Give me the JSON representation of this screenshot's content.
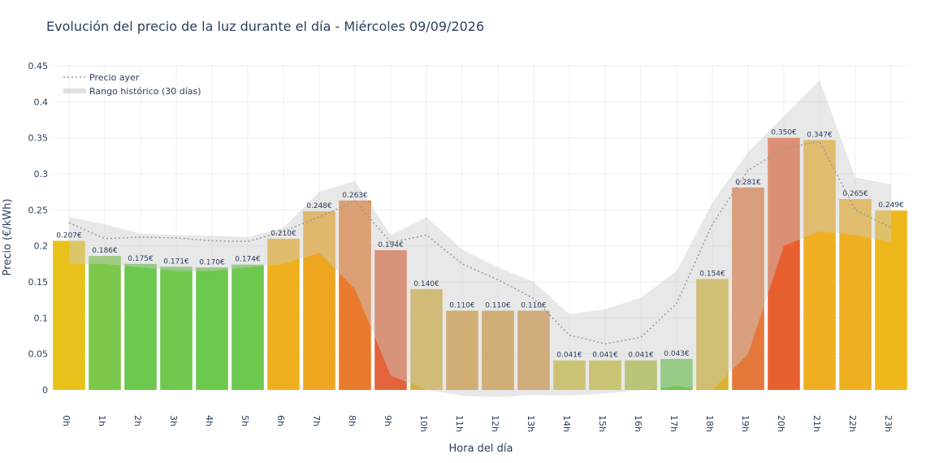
{
  "chart_data": {
    "type": "bar",
    "title": "Evolución del precio de la luz durante el día - Miércoles 09/09/2026",
    "xlabel": "Hora del día",
    "ylabel": "Precio (€/kWh)",
    "ylim": [
      0,
      0.45
    ],
    "yticks": [
      0,
      0.05,
      0.1,
      0.15,
      0.2,
      0.25,
      0.3,
      0.35,
      0.4,
      0.45
    ],
    "ytick_labels": [
      "0",
      "0.05",
      "0.1",
      "0.15",
      "0.2",
      "0.25",
      "0.3",
      "0.35",
      "0.4",
      "0.45"
    ],
    "categories": [
      "0h",
      "1h",
      "2h",
      "3h",
      "4h",
      "5h",
      "6h",
      "7h",
      "8h",
      "9h",
      "10h",
      "11h",
      "12h",
      "13h",
      "14h",
      "15h",
      "16h",
      "17h",
      "18h",
      "19h",
      "20h",
      "21h",
      "22h",
      "23h"
    ],
    "values": [
      0.207,
      0.186,
      0.175,
      0.171,
      0.17,
      0.174,
      0.21,
      0.248,
      0.263,
      0.194,
      0.14,
      0.11,
      0.11,
      0.11,
      0.041,
      0.041,
      0.041,
      0.043,
      0.154,
      0.281,
      0.35,
      0.347,
      0.265,
      0.249
    ],
    "value_labels": [
      "0.207€",
      "0.186€",
      "0.175€",
      "0.171€",
      "0.170€",
      "0.174€",
      "0.210€",
      "0.248€",
      "0.263€",
      "0.194€",
      "0.140€",
      "0.110€",
      "0.110€",
      "0.110€",
      "0.041€",
      "0.041€",
      "0.041€",
      "0.043€",
      "0.154€",
      "0.281€",
      "0.350€",
      "0.347€",
      "0.265€",
      "0.249€"
    ],
    "bar_colors": [
      "#e8c21a",
      "#7cc84a",
      "#6cc84e",
      "#70c84e",
      "#6cc84e",
      "#6cc84e",
      "#eeb01e",
      "#eea620",
      "#ea7a2c",
      "#e2643a",
      "#d4b034",
      "#d49630",
      "#d49630",
      "#d4903a",
      "#cabc2c",
      "#cabc2c",
      "#aebe34",
      "#6cc84e",
      "#d8b430",
      "#e4783a",
      "#e86030",
      "#eeb022",
      "#eeb022",
      "#eeb81c"
    ],
    "series": [
      {
        "name": "Precio ayer",
        "style": "dotted-line",
        "color": "#999999",
        "values": [
          0.232,
          0.21,
          0.212,
          0.211,
          0.207,
          0.206,
          0.22,
          0.24,
          0.262,
          0.205,
          0.215,
          0.175,
          0.153,
          0.127,
          0.076,
          0.064,
          0.073,
          0.12,
          0.23,
          0.305,
          0.335,
          0.345,
          0.25,
          0.225
        ]
      },
      {
        "name": "Rango histórico (30 días)",
        "style": "band",
        "color": "#cccccc",
        "upper": [
          0.24,
          0.23,
          0.217,
          0.215,
          0.214,
          0.212,
          0.225,
          0.275,
          0.29,
          0.215,
          0.24,
          0.195,
          0.17,
          0.15,
          0.105,
          0.112,
          0.128,
          0.165,
          0.26,
          0.33,
          0.38,
          0.43,
          0.295,
          0.285
        ],
        "lower": [
          0.175,
          0.175,
          0.17,
          0.165,
          0.165,
          0.17,
          0.175,
          0.19,
          0.14,
          0.02,
          0.0,
          -0.008,
          -0.01,
          -0.007,
          -0.008,
          -0.005,
          0.0,
          0.005,
          0.0,
          0.05,
          0.2,
          0.22,
          0.215,
          0.205
        ]
      }
    ],
    "legend_position": "top-left",
    "grid": true
  }
}
